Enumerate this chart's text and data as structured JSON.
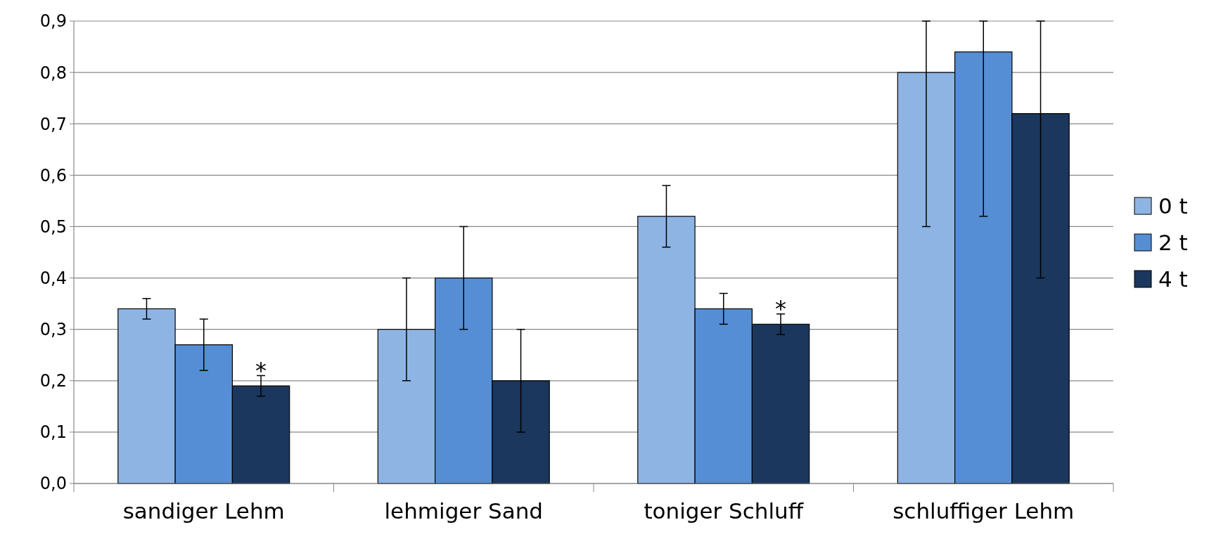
{
  "chart_data": {
    "type": "bar",
    "categories": [
      "sandiger Lehm",
      "lehmiger Sand",
      "toniger Schluff",
      "schluffiger Lehm"
    ],
    "series": [
      {
        "name": "0 t",
        "color": "#8eb4e3",
        "values": [
          0.34,
          0.3,
          0.52,
          0.8
        ],
        "errors": [
          [
            0.32,
            0.36
          ],
          [
            0.2,
            0.4
          ],
          [
            0.46,
            0.58
          ],
          [
            0.5,
            0.9
          ]
        ]
      },
      {
        "name": "2 t",
        "color": "#558ed5",
        "values": [
          0.27,
          0.4,
          0.34,
          0.84
        ],
        "errors": [
          [
            0.22,
            0.32
          ],
          [
            0.3,
            0.5
          ],
          [
            0.31,
            0.37
          ],
          [
            0.52,
            0.9
          ]
        ]
      },
      {
        "name": "4 t",
        "color": "#1b375d",
        "values": [
          0.19,
          0.2,
          0.31,
          0.72
        ],
        "errors": [
          [
            0.17,
            0.21
          ],
          [
            0.1,
            0.3
          ],
          [
            0.29,
            0.33
          ],
          [
            0.4,
            0.9
          ]
        ]
      }
    ],
    "ylim": [
      0,
      0.9
    ],
    "yticks": [
      {
        "value": 0,
        "label": "0,0"
      },
      {
        "value": 0.1,
        "label": "0,1"
      },
      {
        "value": 0.2,
        "label": "0,2"
      },
      {
        "value": 0.3,
        "label": "0,3"
      },
      {
        "value": 0.4,
        "label": "0,4"
      },
      {
        "value": 0.5,
        "label": "0,5"
      },
      {
        "value": 0.6,
        "label": "0,6"
      },
      {
        "value": 0.7,
        "label": "0,7"
      },
      {
        "value": 0.8,
        "label": "0,8"
      },
      {
        "value": 0.9,
        "label": "0,9"
      }
    ],
    "grid": "y",
    "legend": "right",
    "annotations": [
      {
        "text": "*",
        "x": "sandiger Lehm",
        "y": 0.23
      },
      {
        "text": "*",
        "x": "toniger Schluff",
        "y": 0.35
      }
    ]
  }
}
